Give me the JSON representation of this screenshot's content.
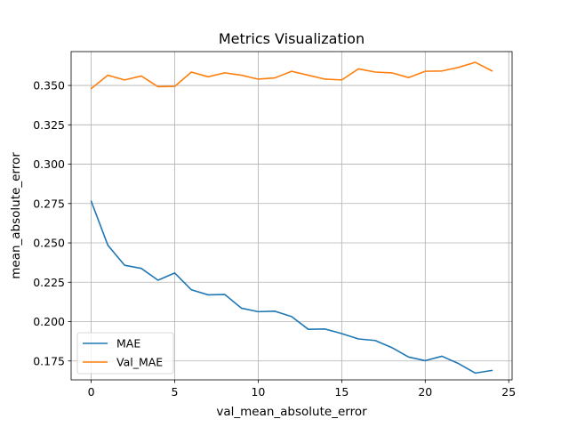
{
  "chart_data": {
    "type": "line",
    "title": "Metrics Visualization",
    "xlabel": "val_mean_absolute_error",
    "ylabel": "mean_absolute_error",
    "xlim": [
      -1.2,
      25.2
    ],
    "ylim": [
      0.163,
      0.3715
    ],
    "xticks": [
      0,
      5,
      10,
      15,
      20,
      25
    ],
    "xtick_labels": [
      "0",
      "5",
      "10",
      "15",
      "20",
      "25"
    ],
    "yticks": [
      0.175,
      0.2,
      0.225,
      0.25,
      0.275,
      0.3,
      0.325,
      0.35
    ],
    "ytick_labels": [
      "0.175",
      "0.200",
      "0.225",
      "0.250",
      "0.275",
      "0.300",
      "0.325",
      "0.350"
    ],
    "grid": true,
    "legend_position": "lower-left",
    "x": [
      0,
      1,
      2,
      3,
      4,
      5,
      6,
      7,
      8,
      9,
      10,
      11,
      12,
      13,
      14,
      15,
      16,
      17,
      18,
      19,
      20,
      21,
      22,
      23,
      24
    ],
    "series": [
      {
        "name": "MAE",
        "color": "#1f77b4",
        "values": [
          0.2765,
          0.2485,
          0.2358,
          0.2338,
          0.2263,
          0.2309,
          0.2202,
          0.217,
          0.2172,
          0.2085,
          0.2063,
          0.2066,
          0.2032,
          0.1951,
          0.1953,
          0.1924,
          0.189,
          0.188,
          0.1835,
          0.1775,
          0.1752,
          0.178,
          0.1733,
          0.1673,
          0.169
        ]
      },
      {
        "name": "Val_MAE",
        "color": "#ff7f0e",
        "values": [
          0.348,
          0.3565,
          0.3535,
          0.356,
          0.3492,
          0.3494,
          0.3585,
          0.3555,
          0.358,
          0.3565,
          0.354,
          0.3548,
          0.359,
          0.3565,
          0.354,
          0.3535,
          0.3605,
          0.3585,
          0.358,
          0.355,
          0.359,
          0.3592,
          0.3615,
          0.3647,
          0.3592
        ]
      }
    ]
  }
}
